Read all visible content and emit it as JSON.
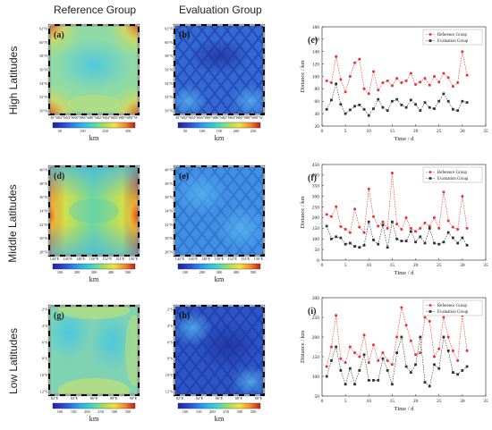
{
  "headers": {
    "reference": "Reference Group",
    "evaluation": "Evaluation Group"
  },
  "rows": [
    {
      "label": "High Latitudes",
      "panel_ref": "(a)",
      "panel_eval": "(b)",
      "panel_chart": "(c)",
      "lat_ticks": [
        "62°N",
        "60°N",
        "58°N",
        "56°N",
        "54°N",
        "52°N",
        "50°N"
      ],
      "lon_ticks": [
        "30°W",
        "32°W",
        "34°W",
        "36°W",
        "38°W",
        "40°W",
        "42°W",
        "44°W",
        "46°W",
        "48°W",
        "50°W"
      ],
      "colorbar_ref": [
        "50",
        "150",
        "250",
        "350"
      ],
      "colorbar_eval": [
        "50",
        "100",
        "150",
        "200",
        "250"
      ],
      "colorbar_unit": "km",
      "ref_theme": "corners-warm",
      "eval_theme": "blue-grid"
    },
    {
      "label": "Middle Latitudes",
      "panel_ref": "(d)",
      "panel_eval": "(e)",
      "panel_chart": "(f)",
      "lat_ticks": [
        "40°N",
        "38°N",
        "36°N",
        "34°N",
        "32°N",
        "30°N",
        "28°N"
      ],
      "lon_ticks": [
        "144°E",
        "146°E",
        "148°E",
        "150°E",
        "152°E",
        "154°E",
        "156°E"
      ],
      "colorbar_ref": [
        "100",
        "200",
        "300",
        "400",
        "500"
      ],
      "colorbar_eval": [
        "100",
        "200",
        "300",
        "400",
        "500"
      ],
      "colorbar_unit": "km",
      "ref_theme": "edges-warm",
      "eval_theme": "blue-light"
    },
    {
      "label": "Low Latitudes",
      "panel_ref": "(g)",
      "panel_eval": "(h)",
      "panel_chart": "(i)",
      "lat_ticks": [
        "2°S",
        "4°S",
        "6°S",
        "8°S",
        "10°S",
        "12°S"
      ],
      "lon_ticks": [
        "82°E",
        "84°E",
        "86°E",
        "88°E",
        "90°E"
      ],
      "colorbar_ref": [
        "100",
        "150",
        "200",
        "250",
        "300",
        "350"
      ],
      "colorbar_eval": [
        "100",
        "150",
        "200",
        "250",
        "300",
        "350"
      ],
      "colorbar_unit": "km",
      "ref_theme": "mild",
      "eval_theme": "blue-deep"
    }
  ],
  "chart_data": [
    {
      "type": "line",
      "xlabel": "Time / d",
      "ylabel": "Distance / km",
      "xlim": [
        0,
        35
      ],
      "ylim": [
        20,
        180
      ],
      "xticks": [
        0,
        5,
        10,
        15,
        20,
        25,
        30,
        35
      ],
      "yticks": [
        20,
        40,
        60,
        80,
        100,
        120,
        140,
        160,
        180
      ],
      "legend_position": "top-right",
      "x": [
        1,
        2,
        3,
        4,
        5,
        6,
        7,
        8,
        9,
        10,
        11,
        12,
        13,
        14,
        15,
        16,
        17,
        18,
        19,
        20,
        21,
        22,
        23,
        24,
        25,
        26,
        27,
        28,
        29,
        30,
        31
      ],
      "series": [
        {
          "name": "Reference Group",
          "color": "#e8342e",
          "marker": "circle",
          "values": [
            93,
            90,
            132,
            95,
            75,
            100,
            122,
            128,
            80,
            72,
            108,
            78,
            90,
            93,
            85,
            97,
            90,
            93,
            105,
            87,
            91,
            97,
            86,
            100,
            91,
            105,
            98,
            84,
            90,
            140,
            102
          ]
        },
        {
          "name": "Evaluation Group",
          "color": "#333333",
          "marker": "square",
          "values": [
            47,
            62,
            88,
            55,
            40,
            46,
            52,
            54,
            47,
            37,
            48,
            63,
            50,
            45,
            60,
            63,
            54,
            50,
            62,
            55,
            45,
            58,
            50,
            48,
            60,
            72,
            60,
            47,
            45,
            60,
            58
          ]
        }
      ]
    },
    {
      "type": "line",
      "xlabel": "Time / d",
      "ylabel": "Distance / km",
      "xlim": [
        0,
        35
      ],
      "ylim": [
        0,
        450
      ],
      "xticks": [
        0,
        5,
        10,
        15,
        20,
        25,
        30,
        35
      ],
      "yticks": [
        0,
        50,
        100,
        150,
        200,
        250,
        300,
        350,
        400,
        450
      ],
      "legend_position": "top-right",
      "x": [
        1,
        2,
        3,
        4,
        5,
        6,
        7,
        8,
        9,
        10,
        11,
        12,
        13,
        14,
        15,
        16,
        17,
        18,
        19,
        20,
        21,
        22,
        23,
        24,
        25,
        26,
        27,
        28,
        29,
        30,
        31
      ],
      "series": [
        {
          "name": "Reference Group",
          "color": "#e8342e",
          "marker": "circle",
          "values": [
            215,
            205,
            252,
            158,
            145,
            130,
            240,
            155,
            130,
            335,
            205,
            160,
            180,
            150,
            410,
            170,
            145,
            200,
            150,
            135,
            150,
            175,
            160,
            200,
            150,
            320,
            185,
            155,
            145,
            300,
            150
          ]
        },
        {
          "name": "Evaluation Group",
          "color": "#333333",
          "marker": "square",
          "values": [
            160,
            100,
            110,
            105,
            75,
            80,
            65,
            60,
            70,
            180,
            95,
            75,
            165,
            60,
            180,
            100,
            90,
            90,
            135,
            85,
            110,
            80,
            150,
            80,
            75,
            85,
            130,
            105,
            80,
            105,
            70
          ]
        }
      ]
    },
    {
      "type": "line",
      "xlabel": "Time / d",
      "ylabel": "Distance / km",
      "xlim": [
        0,
        35
      ],
      "ylim": [
        50,
        300
      ],
      "xticks": [
        0,
        5,
        10,
        15,
        20,
        25,
        30,
        35
      ],
      "yticks": [
        50,
        100,
        150,
        200,
        250,
        300
      ],
      "legend_position": "top-right",
      "x": [
        1,
        2,
        3,
        4,
        5,
        6,
        7,
        8,
        9,
        10,
        11,
        12,
        13,
        14,
        15,
        16,
        17,
        18,
        19,
        20,
        21,
        22,
        23,
        24,
        25,
        26,
        27,
        28,
        29,
        30,
        31
      ],
      "series": [
        {
          "name": "Reference Group",
          "color": "#e8342e",
          "marker": "circle",
          "values": [
            125,
            175,
            255,
            145,
            135,
            175,
            160,
            150,
            205,
            135,
            180,
            140,
            160,
            140,
            130,
            200,
            275,
            230,
            190,
            155,
            160,
            250,
            240,
            150,
            170,
            250,
            200,
            165,
            140,
            255,
            165
          ]
        },
        {
          "name": "Evaluation Group",
          "color": "#333333",
          "marker": "square",
          "values": [
            100,
            140,
            175,
            115,
            80,
            120,
            80,
            115,
            155,
            90,
            90,
            90,
            145,
            115,
            80,
            160,
            200,
            125,
            110,
            130,
            200,
            85,
            75,
            130,
            120,
            200,
            165,
            110,
            105,
            115,
            125
          ]
        }
      ]
    }
  ]
}
